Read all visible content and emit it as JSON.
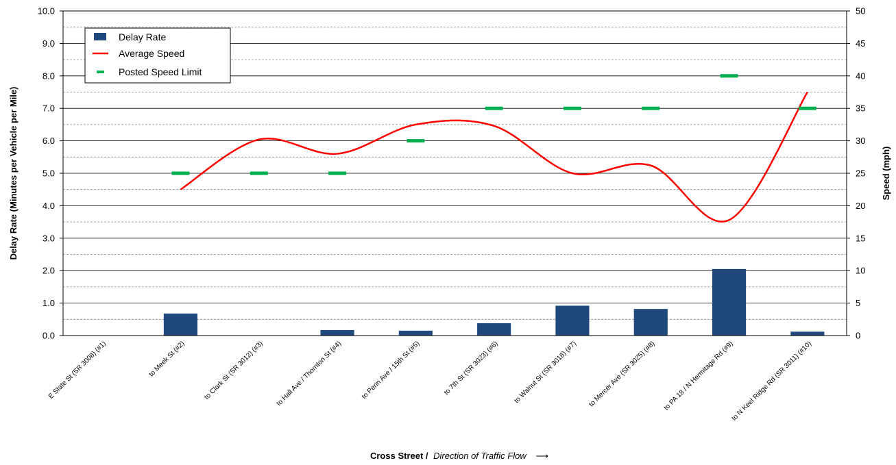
{
  "chart_data": {
    "type": "bar",
    "xlabel": "Cross Street /",
    "xlabel_italic": "Direction of Traffic Flow",
    "xlabel_arrow": "⟶",
    "ylabel": "Delay Rate (Minutes per Vehicle per Mile)",
    "y2label": "Speed (mph)",
    "ylim": [
      0,
      10
    ],
    "y2lim": [
      0,
      50
    ],
    "yticks": [
      "0.0",
      "1.0",
      "2.0",
      "3.0",
      "4.0",
      "5.0",
      "6.0",
      "7.0",
      "8.0",
      "9.0",
      "10.0"
    ],
    "y2ticks": [
      "0",
      "5",
      "10",
      "15",
      "20",
      "25",
      "30",
      "35",
      "40",
      "45",
      "50"
    ],
    "grid": "major solid, minor dashed",
    "legend_position": "top-left",
    "categories": [
      "E State St (SR 3008) (#1)",
      "to Meek St (#2)",
      "to Clark St (SR 3012) (#3)",
      "to Hall Ave / Thornton St (#4)",
      "to Penn Ave / 15th St (#5)",
      "to 7th St (SR 3023) (#6)",
      "to Walnut St (SR 3018) (#7)",
      "to Mercer Ave (SR 3025) (#8)",
      "to PA 18 / N Hermitage Rd (#9)",
      "to N Keel Ridge Rd (SR 3011) (#10)"
    ],
    "series": [
      {
        "name": "Delay Rate",
        "kind": "bar",
        "axis": "left",
        "color": "#1f497d",
        "values": [
          0,
          0.68,
          0,
          0.17,
          0.15,
          0.38,
          0.92,
          0.82,
          2.05,
          0.12
        ]
      },
      {
        "name": "Average Speed",
        "kind": "line",
        "axis": "right",
        "color": "#ff0000",
        "values": [
          null,
          22.5,
          30.2,
          28,
          32.5,
          32.3,
          25,
          26.2,
          17.8,
          37.5
        ]
      },
      {
        "name": "Posted Speed Limit",
        "kind": "marker",
        "axis": "right",
        "color": "#00b050",
        "values": [
          null,
          25,
          25,
          25,
          30,
          35,
          35,
          35,
          40,
          35
        ]
      }
    ]
  }
}
